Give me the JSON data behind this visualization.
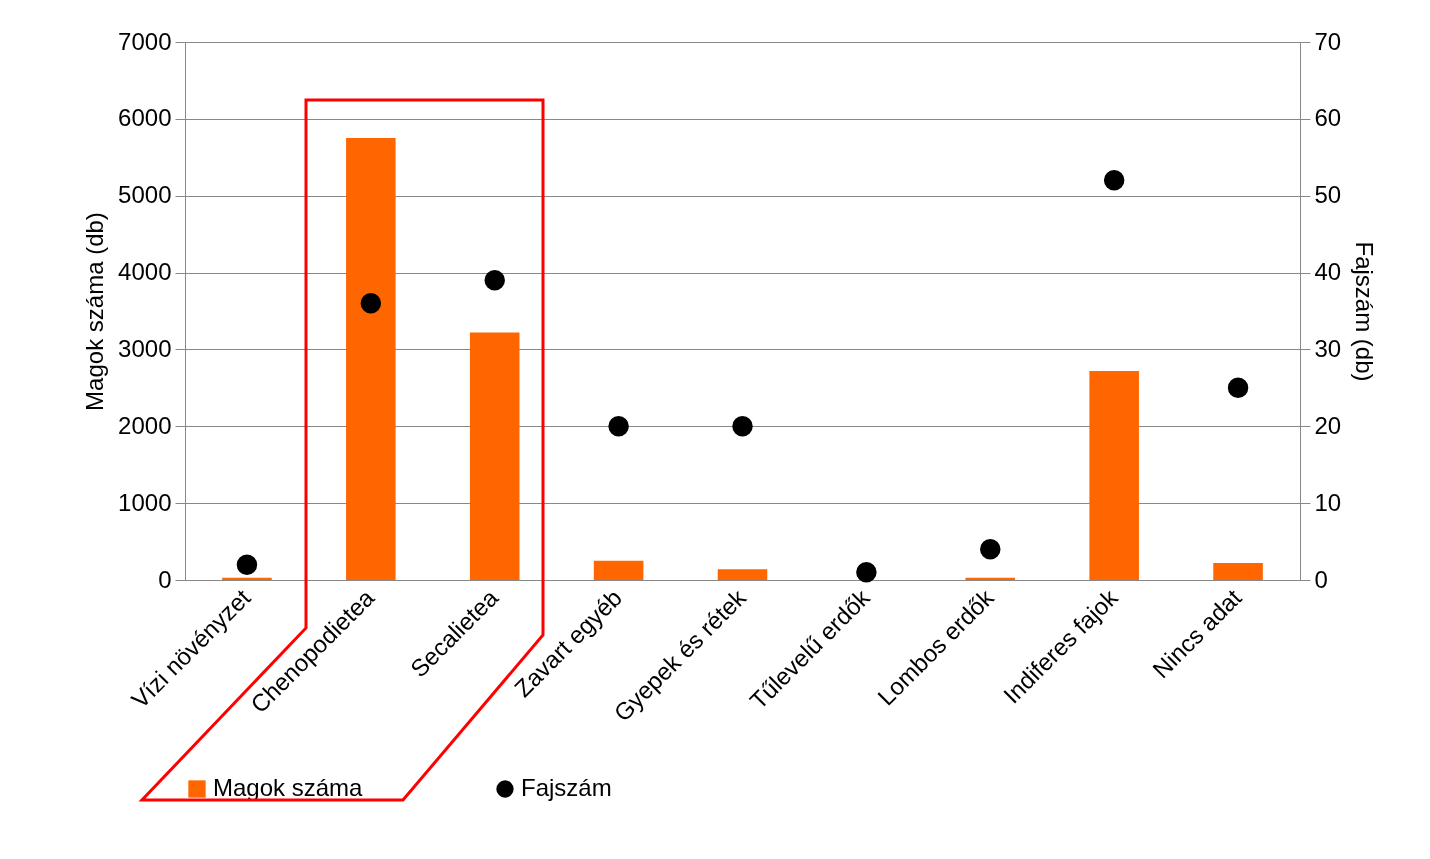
{
  "chart_data": {
    "type": "bar",
    "categories": [
      "Vízi növényzet",
      "Chenopodietea",
      "Secalietea",
      "Zavart egyéb",
      "Gyepek és rétek",
      "Tűlevelű erdők",
      "Lombos erdők",
      "Indiferes fajok",
      "Nincs adat"
    ],
    "ylabel": "Magok száma (db)",
    "y2label": "Fajszám (db)",
    "ylim": [
      0,
      7000
    ],
    "yticks": [
      0,
      1000,
      2000,
      3000,
      4000,
      5000,
      6000,
      7000
    ],
    "y2lim": [
      0,
      70
    ],
    "y2ticks": [
      0,
      10,
      20,
      30,
      40,
      50,
      60,
      70
    ],
    "grid": "y",
    "legend": "bottom",
    "marker": "circle",
    "series": [
      {
        "name": "Magok száma",
        "color": "#ff6600",
        "values": [
          30,
          5750,
          3220,
          250,
          140,
          0,
          30,
          2720,
          220
        ]
      },
      {
        "name": "Fajszám",
        "type": "scatter",
        "axis": "y2",
        "color": "#000000",
        "values": [
          2,
          36,
          39,
          20,
          20,
          1,
          4,
          52,
          25
        ]
      }
    ]
  }
}
